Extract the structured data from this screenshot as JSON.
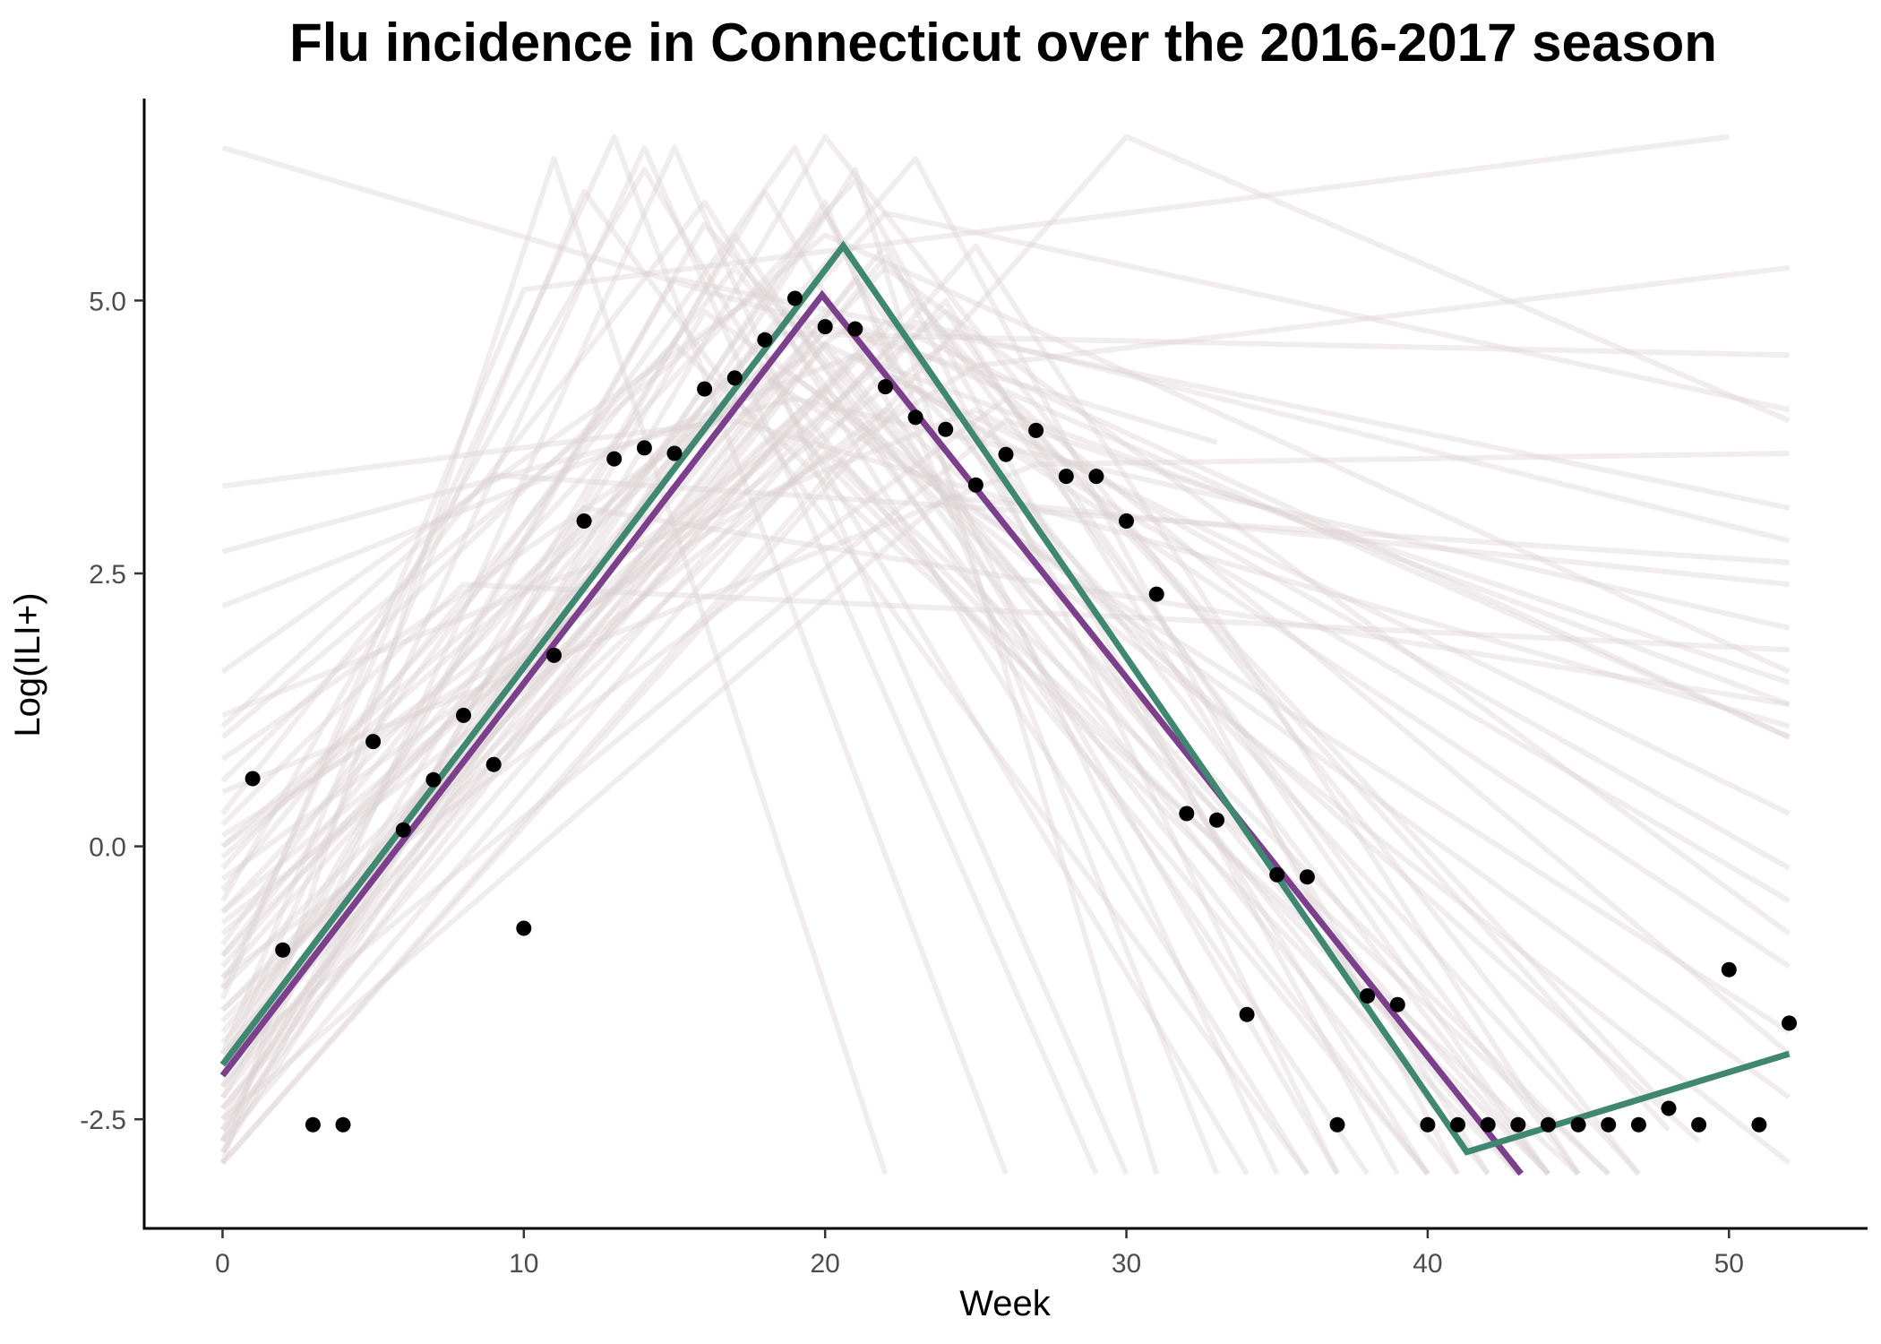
{
  "chart_data": {
    "type": "line",
    "title": "Flu incidence in Connecticut over the 2016-2017 season",
    "xlabel": "Week",
    "ylabel": "Log(ILI+)",
    "xlim": [
      -2.6,
      54.6
    ],
    "ylim": [
      -3.5,
      6.85
    ],
    "x_ticks": [
      0,
      10,
      20,
      30,
      40,
      50
    ],
    "x_tick_labels": [
      "0",
      "10",
      "20",
      "30",
      "40",
      "50"
    ],
    "y_ticks": [
      -2.5,
      0.0,
      2.5,
      5.0
    ],
    "y_tick_labels": [
      "-2.5",
      "0.0",
      "2.5",
      "5.0"
    ],
    "grid": false,
    "colors": {
      "observed_points": "#000000",
      "fit_purple": "#7b3f8c",
      "fit_green": "#3f8770",
      "sample_lines": "#d9cfd1"
    },
    "observed": {
      "x": [
        1,
        2,
        3,
        4,
        5,
        6,
        7,
        8,
        9,
        10,
        11,
        12,
        13,
        14,
        15,
        16,
        17,
        18,
        19,
        20,
        21,
        22,
        23,
        24,
        25,
        26,
        27,
        28,
        29,
        30,
        31,
        32,
        33,
        34,
        35,
        36,
        37,
        38,
        39,
        40,
        41,
        42,
        43,
        44,
        45,
        46,
        47,
        48,
        49,
        50,
        51,
        52
      ],
      "y": [
        0.62,
        -0.95,
        -2.55,
        -2.55,
        0.96,
        0.15,
        0.61,
        1.2,
        0.75,
        -0.75,
        1.75,
        2.98,
        3.55,
        3.65,
        3.6,
        4.19,
        4.29,
        4.64,
        5.02,
        4.76,
        4.74,
        4.21,
        3.93,
        3.82,
        3.31,
        3.59,
        3.81,
        3.39,
        3.39,
        2.98,
        2.31,
        0.3,
        0.24,
        -1.54,
        -0.26,
        -0.28,
        -2.55,
        -1.37,
        -1.45,
        -2.55,
        -2.55,
        -2.55,
        -2.55,
        -2.55,
        -2.55,
        -2.55,
        -2.55,
        -2.4,
        -2.55,
        -1.13,
        -2.55,
        -1.62
      ]
    },
    "series": [
      {
        "x": [
          0,
          19.9,
          43.1
        ],
        "y": [
          -2.1,
          5.05,
          -3.0
        ]
      },
      {
        "x": [
          0,
          20.6,
          41.3,
          52
        ],
        "y": [
          -2.0,
          5.5,
          -2.8,
          -1.9
        ]
      }
    ],
    "posterior_samples": [
      {
        "x": [
          0,
          20,
          43
        ],
        "y": [
          -2.6,
          4.6,
          -3.0
        ]
      },
      {
        "x": [
          0,
          21,
          44
        ],
        "y": [
          -2.3,
          5.2,
          -3.0
        ]
      },
      {
        "x": [
          0,
          19,
          42
        ],
        "y": [
          -1.8,
          4.9,
          -3.0
        ]
      },
      {
        "x": [
          0,
          22,
          45
        ],
        "y": [
          -2.0,
          5.4,
          -3.0
        ]
      },
      {
        "x": [
          0,
          18,
          40
        ],
        "y": [
          -1.2,
          4.4,
          -3.0
        ]
      },
      {
        "x": [
          0,
          20,
          46
        ],
        "y": [
          -0.8,
          4.2,
          -3.0
        ]
      },
      {
        "x": [
          0,
          17,
          38
        ],
        "y": [
          -2.8,
          5.6,
          -3.0
        ]
      },
      {
        "x": [
          0,
          23,
          48
        ],
        "y": [
          -1.5,
          5.0,
          -2.6
        ]
      },
      {
        "x": [
          0,
          16,
          36
        ],
        "y": [
          0.3,
          5.9,
          -3.0
        ]
      },
      {
        "x": [
          0,
          24,
          52
        ],
        "y": [
          -0.3,
          4.6,
          -1.9
        ]
      },
      {
        "x": [
          0,
          19,
          52
        ],
        "y": [
          -2.4,
          4.3,
          -2.9
        ]
      },
      {
        "x": [
          0,
          21,
          47
        ],
        "y": [
          0.8,
          4.8,
          -3.0
        ]
      },
      {
        "x": [
          0,
          14,
          34
        ],
        "y": [
          -0.5,
          6.2,
          -3.0
        ]
      },
      {
        "x": [
          0,
          25,
          52
        ],
        "y": [
          1.2,
          4.0,
          -0.2
        ]
      },
      {
        "x": [
          0,
          18,
          41
        ],
        "y": [
          1.6,
          5.1,
          -3.0
        ]
      },
      {
        "x": [
          0,
          22,
          52
        ],
        "y": [
          -1.0,
          5.3,
          -0.8
        ]
      },
      {
        "x": [
          0,
          15,
          30
        ],
        "y": [
          -2.7,
          6.4,
          -3.0
        ]
      },
      {
        "x": [
          0,
          20,
          52
        ],
        "y": [
          0.0,
          4.9,
          1.0
        ]
      },
      {
        "x": [
          0,
          26,
          52
        ],
        "y": [
          -2.0,
          3.9,
          1.5
        ]
      },
      {
        "x": [
          0,
          13,
          26
        ],
        "y": [
          -1.3,
          6.5,
          -3.0
        ]
      },
      {
        "x": [
          0,
          21,
          52
        ],
        "y": [
          2.2,
          4.5,
          1.3
        ]
      },
      {
        "x": [
          0,
          19,
          52
        ],
        "y": [
          2.7,
          4.1,
          2.0
        ]
      },
      {
        "x": [
          0,
          23,
          52
        ],
        "y": [
          -1.6,
          4.8,
          2.8
        ]
      },
      {
        "x": [
          0,
          17,
          52
        ],
        "y": [
          3.3,
          3.9,
          1.1
        ]
      },
      {
        "x": [
          0,
          20,
          52
        ],
        "y": [
          1.0,
          5.6,
          1.6
        ]
      },
      {
        "x": [
          0,
          15,
          52
        ],
        "y": [
          -2.1,
          5.2,
          3.1
        ]
      },
      {
        "x": [
          0,
          24,
          52
        ],
        "y": [
          -2.5,
          3.2,
          2.4
        ]
      },
      {
        "x": [
          0,
          11,
          22
        ],
        "y": [
          -2.9,
          6.3,
          -3.0
        ]
      },
      {
        "x": [
          0,
          27,
          52
        ],
        "y": [
          0.5,
          3.5,
          3.6
        ]
      },
      {
        "x": [
          0,
          12,
          36
        ],
        "y": [
          -1.9,
          6.0,
          -3.0
        ]
      },
      {
        "x": [
          0,
          22,
          52
        ],
        "y": [
          -0.6,
          5.8,
          4.0
        ]
      },
      {
        "x": [
          0,
          18,
          52
        ],
        "y": [
          -2.2,
          4.7,
          4.5
        ]
      },
      {
        "x": [
          0,
          25,
          52
        ],
        "y": [
          0.1,
          4.4,
          5.3
        ]
      },
      {
        "x": [
          0,
          10,
          50
        ],
        "y": [
          -1.4,
          5.1,
          6.5
        ]
      },
      {
        "x": [
          0,
          30,
          52
        ],
        "y": [
          -2.9,
          6.5,
          3.9
        ]
      },
      {
        "x": [
          0,
          16,
          44
        ],
        "y": [
          -2.0,
          5.7,
          -3.0
        ]
      },
      {
        "x": [
          0,
          21,
          39
        ],
        "y": [
          -0.2,
          6.1,
          -3.0
        ]
      },
      {
        "x": [
          0,
          23,
          41
        ],
        "y": [
          -1.1,
          6.3,
          -3.0
        ]
      },
      {
        "x": [
          0,
          19,
          35
        ],
        "y": [
          -0.9,
          6.4,
          -3.0
        ]
      },
      {
        "x": [
          0,
          20,
          33
        ],
        "y": [
          -2.5,
          5.9,
          -3.0
        ]
      },
      {
        "x": [
          0,
          22,
          37
        ],
        "y": [
          -1.7,
          5.5,
          -3.0
        ]
      },
      {
        "x": [
          0,
          24,
          42
        ],
        "y": [
          -2.7,
          5.0,
          -3.0
        ]
      },
      {
        "x": [
          0,
          17,
          40
        ],
        "y": [
          -0.4,
          5.3,
          -3.0
        ]
      },
      {
        "x": [
          0,
          15,
          45
        ],
        "y": [
          0.6,
          4.6,
          -3.0
        ]
      },
      {
        "x": [
          0,
          26,
          48
        ],
        "y": [
          -1.2,
          4.1,
          -2.4
        ]
      },
      {
        "x": [
          0,
          18,
          37
        ],
        "y": [
          -2.3,
          6.0,
          -3.0
        ]
      },
      {
        "x": [
          0,
          14,
          29
        ],
        "y": [
          -2.0,
          6.4,
          -3.0
        ]
      },
      {
        "x": [
          0,
          21,
          31
        ],
        "y": [
          -2.8,
          6.2,
          -3.0
        ]
      },
      {
        "x": [
          0,
          20,
          44
        ],
        "y": [
          -1.5,
          3.6,
          -3.0
        ]
      },
      {
        "x": [
          0,
          19,
          46
        ],
        "y": [
          -2.2,
          3.9,
          -3.0
        ]
      },
      {
        "x": [
          0,
          22,
          49
        ],
        "y": [
          -0.7,
          4.0,
          -2.7
        ]
      },
      {
        "x": [
          0,
          16,
          52
        ],
        "y": [
          -2.6,
          4.9,
          -2.3
        ]
      },
      {
        "x": [
          0,
          23,
          52
        ],
        "y": [
          -2.9,
          4.2,
          -1.1
        ]
      },
      {
        "x": [
          0,
          20,
          52
        ],
        "y": [
          -1.9,
          4.6,
          0.3
        ]
      },
      {
        "x": [
          0,
          18,
          52
        ],
        "y": [
          -0.1,
          4.3,
          -1.7
        ]
      },
      {
        "x": [
          0,
          25,
          45
        ],
        "y": [
          -2.4,
          5.5,
          -3.0
        ]
      },
      {
        "x": [
          0,
          12,
          52
        ],
        "y": [
          -1.0,
          3.1,
          1.3
        ]
      },
      {
        "x": [
          0,
          8,
          52
        ],
        "y": [
          0.2,
          2.4,
          1.8
        ]
      },
      {
        "x": [
          0,
          9,
          52
        ],
        "y": [
          1.1,
          3.4,
          2.6
        ]
      },
      {
        "x": [
          0,
          10,
          20,
          47
        ],
        "y": [
          -2.7,
          1.8,
          6.5,
          -3.0
        ]
      },
      {
        "x": [
          0,
          33
        ],
        "y": [
          6.4,
          3.7
        ]
      },
      {
        "x": [
          0,
          22,
          52
        ],
        "y": [
          -2.0,
          4.8,
          1.0
        ]
      },
      {
        "x": [
          0,
          21,
          52
        ],
        "y": [
          -1.3,
          4.5,
          -0.5
        ]
      },
      {
        "x": [
          0,
          19,
          43
        ],
        "y": [
          0.0,
          3.8,
          -3.0
        ]
      },
      {
        "x": [
          0,
          24,
          44
        ],
        "y": [
          -0.6,
          4.9,
          -3.0
        ]
      },
      {
        "x": [
          0,
          20,
          40
        ],
        "y": [
          -2.1,
          5.8,
          -3.0
        ]
      }
    ]
  }
}
